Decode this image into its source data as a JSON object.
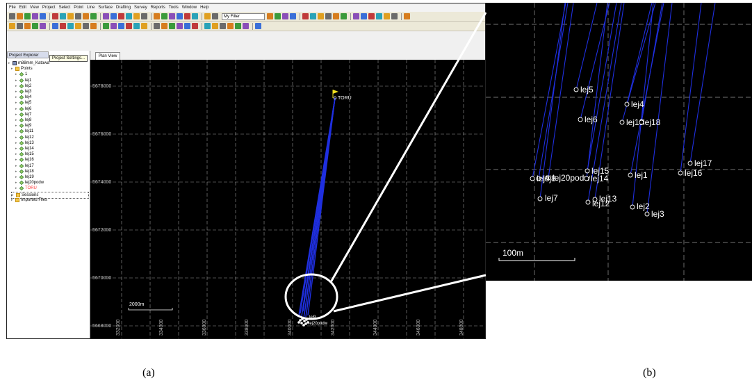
{
  "captions": {
    "a": "(a)",
    "b": "(b)"
  },
  "menu": [
    "File",
    "Edit",
    "View",
    "Project",
    "Select",
    "Point",
    "Line",
    "Surface",
    "Drafting",
    "Survey",
    "Reports",
    "Tools",
    "Window",
    "Help"
  ],
  "toolbar": {
    "filter_value": "My Filter"
  },
  "explorer": {
    "title": "Project Explorer",
    "tooltip": "Project Settings...",
    "project_name": "m88mm_Katowa",
    "points_label": "Points",
    "points": [
      "1",
      "lej1",
      "lej2",
      "lej3",
      "lej4",
      "lej5",
      "lej6",
      "lej7",
      "lej8",
      "lej9",
      "lej11",
      "lej12",
      "lej13",
      "lej14",
      "lej15",
      "lej16",
      "lej17",
      "lej18",
      "lej19",
      "lej20podw",
      "TORU"
    ],
    "highlight_point": "TORU",
    "sessions_label": "Sessions",
    "imported_label": "Imported Files"
  },
  "plan_view": {
    "tab_label": "Plan View",
    "northings": [
      "5678000",
      "5676000",
      "5674000",
      "5672000",
      "5670000",
      "5668000"
    ],
    "eastings": [
      "332000",
      "334000",
      "336000",
      "338000",
      "340000",
      "342000",
      "344000",
      "346000",
      "348000"
    ],
    "scale_label": "2000m",
    "station_label": "TORU",
    "cluster_labels": [
      "lej9",
      "lej20podw"
    ]
  },
  "detail_view": {
    "scale_label": "100m",
    "points": [
      {
        "label": "lej5"
      },
      {
        "label": "lej4"
      },
      {
        "label": "lej6"
      },
      {
        "label": "lej19"
      },
      {
        "label": "lej18"
      },
      {
        "label": "lej17"
      },
      {
        "label": "lej15"
      },
      {
        "label": "lej1"
      },
      {
        "label": "lej16"
      },
      {
        "label": "lej20podw"
      },
      {
        "label": "lej8"
      },
      {
        "label": "lej9"
      },
      {
        "label": "lej14"
      },
      {
        "label": "lej7"
      },
      {
        "label": "lej13"
      },
      {
        "label": "lej12"
      },
      {
        "label": "lej2"
      },
      {
        "label": "lej3"
      }
    ]
  },
  "colors": {
    "vector": "#1f2fe0",
    "map_bg": "#000000",
    "grid": "#9a9a9a",
    "toru_flag": "#f0e020",
    "toru_label": "#ff3b3b"
  }
}
